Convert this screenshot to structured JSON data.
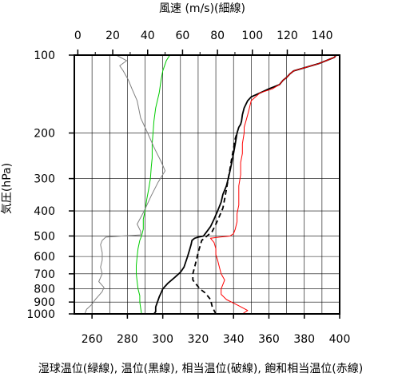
{
  "chart_data": {
    "type": "line",
    "title_top": "風速 (m/s)(細線)",
    "ylabel": "気圧(hPa)",
    "xlabel_bottom": "湿球温位(緑線), 温位(黒線), 相当温位(破線), 飽和相当温位(赤線)",
    "y_scale": "log",
    "y_reversed": true,
    "ylim": [
      1000,
      100
    ],
    "y_ticks": [
      100,
      200,
      300,
      400,
      500,
      600,
      700,
      800,
      900,
      1000
    ],
    "x_bottom_lim": [
      250,
      400
    ],
    "x_bottom_ticks": [
      260,
      280,
      300,
      320,
      340,
      360,
      380,
      400
    ],
    "x_top_lim": [
      -2,
      150
    ],
    "x_top_ticks": [
      0,
      20,
      40,
      60,
      80,
      100,
      120,
      140
    ],
    "grid": true,
    "series": [
      {
        "axis": "bottom",
        "color": "#00cc00",
        "line": "solid",
        "points": [
          [
            288,
            1000
          ],
          [
            287.5,
            950
          ],
          [
            287,
            900
          ],
          [
            287,
            850
          ],
          [
            286,
            800
          ],
          [
            285.5,
            750
          ],
          [
            285,
            700
          ],
          [
            285,
            650
          ],
          [
            285.5,
            600
          ],
          [
            286,
            560
          ],
          [
            287,
            520
          ],
          [
            288,
            500
          ],
          [
            289,
            470
          ],
          [
            289,
            430
          ],
          [
            290,
            400
          ],
          [
            291,
            360
          ],
          [
            292,
            330
          ],
          [
            293,
            300
          ],
          [
            293.5,
            270
          ],
          [
            294,
            250
          ],
          [
            294,
            220
          ],
          [
            294.5,
            200
          ],
          [
            295,
            180
          ],
          [
            296,
            160
          ],
          [
            298,
            140
          ],
          [
            299,
            125
          ],
          [
            300,
            115
          ],
          [
            302,
            105
          ],
          [
            304,
            100
          ]
        ]
      },
      {
        "axis": "bottom",
        "color": "#000000",
        "line": "solid",
        "points": [
          [
            295,
            1000
          ],
          [
            296,
            980
          ],
          [
            296,
            940
          ],
          [
            297,
            900
          ],
          [
            298,
            860
          ],
          [
            299,
            830
          ],
          [
            300,
            800
          ],
          [
            303,
            760
          ],
          [
            307,
            720
          ],
          [
            310,
            690
          ],
          [
            312,
            660
          ],
          [
            313,
            630
          ],
          [
            314,
            600
          ],
          [
            315,
            570
          ],
          [
            316,
            540
          ],
          [
            316.5,
            520
          ],
          [
            318,
            510
          ],
          [
            320,
            505
          ],
          [
            323,
            500
          ],
          [
            325,
            480
          ],
          [
            327,
            460
          ],
          [
            329,
            430
          ],
          [
            331,
            400
          ],
          [
            333,
            370
          ],
          [
            334,
            345
          ],
          [
            336,
            320
          ],
          [
            337,
            300
          ],
          [
            338,
            280
          ],
          [
            339,
            260
          ],
          [
            340,
            240
          ],
          [
            341,
            220
          ],
          [
            342,
            200
          ],
          [
            343,
            190
          ],
          [
            344,
            185
          ],
          [
            344.5,
            180
          ],
          [
            345,
            170
          ],
          [
            346,
            160
          ],
          [
            348,
            150
          ],
          [
            350,
            145
          ],
          [
            355,
            140
          ],
          [
            360,
            135
          ],
          [
            366,
            130
          ],
          [
            368,
            125
          ],
          [
            370,
            122
          ],
          [
            372,
            118
          ],
          [
            374,
            115
          ],
          [
            380,
            112
          ],
          [
            388,
            108
          ],
          [
            394,
            104
          ],
          [
            397,
            102
          ],
          [
            398,
            100
          ]
        ]
      },
      {
        "axis": "bottom",
        "color": "#000000",
        "line": "dashed",
        "points": [
          [
            330,
            1000
          ],
          [
            328,
            940
          ],
          [
            327,
            880
          ],
          [
            324,
            830
          ],
          [
            321,
            800
          ],
          [
            319,
            770
          ],
          [
            317,
            740
          ],
          [
            317,
            700
          ],
          [
            318,
            660
          ],
          [
            319,
            620
          ],
          [
            320,
            580
          ],
          [
            321,
            550
          ],
          [
            322,
            520
          ],
          [
            325,
            500
          ],
          [
            328,
            480
          ],
          [
            330,
            450
          ],
          [
            332,
            420
          ],
          [
            334,
            390
          ],
          [
            335,
            360
          ],
          [
            336,
            330
          ],
          [
            337,
            300
          ],
          [
            338,
            275
          ],
          [
            339,
            250
          ],
          [
            340,
            230
          ],
          [
            341,
            210
          ],
          [
            342,
            200
          ]
        ]
      },
      {
        "axis": "bottom",
        "color": "#ff0000",
        "line": "solid",
        "points": [
          [
            345,
            1000
          ],
          [
            348,
            970
          ],
          [
            343,
            930
          ],
          [
            336,
            880
          ],
          [
            333,
            840
          ],
          [
            333,
            800
          ],
          [
            334,
            770
          ],
          [
            335,
            740
          ],
          [
            333,
            700
          ],
          [
            332,
            660
          ],
          [
            331,
            620
          ],
          [
            330,
            590
          ],
          [
            330,
            560
          ],
          [
            329,
            530
          ],
          [
            327,
            510
          ],
          [
            332,
            505
          ],
          [
            338,
            500
          ],
          [
            340,
            490
          ],
          [
            341,
            470
          ],
          [
            342,
            440
          ],
          [
            342,
            410
          ],
          [
            343,
            380
          ],
          [
            343,
            350
          ],
          [
            343,
            320
          ],
          [
            344,
            290
          ],
          [
            344,
            260
          ],
          [
            345,
            240
          ],
          [
            345,
            220
          ],
          [
            346,
            200
          ],
          [
            346,
            190
          ],
          [
            347,
            180
          ],
          [
            348,
            170
          ],
          [
            349,
            160
          ],
          [
            350,
            150
          ],
          [
            355,
            140
          ],
          [
            362,
            135
          ],
          [
            366,
            130
          ],
          [
            368,
            125
          ],
          [
            370,
            122
          ],
          [
            372,
            118
          ],
          [
            374,
            115
          ],
          [
            380,
            112
          ],
          [
            388,
            108
          ],
          [
            394,
            104
          ],
          [
            397,
            102
          ],
          [
            398,
            100
          ]
        ]
      },
      {
        "axis": "top",
        "color": "#808080",
        "line": "solid",
        "points": [
          [
            4,
            1000
          ],
          [
            5,
            960
          ],
          [
            8,
            920
          ],
          [
            10,
            880
          ],
          [
            12,
            850
          ],
          [
            14,
            820
          ],
          [
            15,
            790
          ],
          [
            12,
            750
          ],
          [
            14,
            700
          ],
          [
            13,
            660
          ],
          [
            14,
            620
          ],
          [
            14,
            580
          ],
          [
            13,
            540
          ],
          [
            14,
            520
          ],
          [
            16,
            505
          ],
          [
            25,
            500
          ],
          [
            36,
            495
          ],
          [
            36,
            480
          ],
          [
            34,
            450
          ],
          [
            38,
            400
          ],
          [
            42,
            350
          ],
          [
            46,
            310
          ],
          [
            50,
            280
          ],
          [
            48,
            260
          ],
          [
            44,
            230
          ],
          [
            40,
            200
          ],
          [
            36,
            175
          ],
          [
            34,
            150
          ],
          [
            31,
            135
          ],
          [
            29,
            125
          ],
          [
            26,
            115
          ],
          [
            24,
            110
          ],
          [
            28,
            105
          ],
          [
            22,
            100
          ]
        ]
      }
    ]
  }
}
